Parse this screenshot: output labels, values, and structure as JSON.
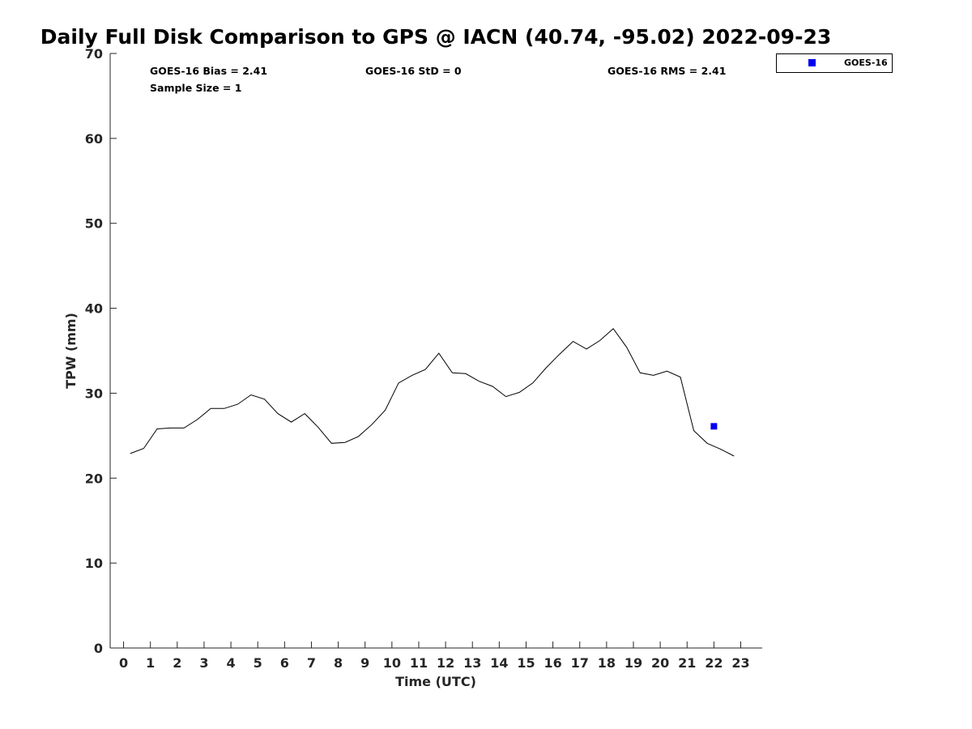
{
  "chart_data": {
    "type": "line",
    "title": "Daily Full Disk Comparison to GPS @ IACN (40.74, -95.02) 2022-09-23",
    "xlabel": "Time (UTC)",
    "ylabel": "TPW (mm)",
    "xlim": [
      -0.5,
      23.8
    ],
    "ylim": [
      0,
      70
    ],
    "x_ticks": [
      "0",
      "1",
      "2",
      "3",
      "4",
      "5",
      "6",
      "7",
      "8",
      "9",
      "10",
      "11",
      "12",
      "13",
      "14",
      "15",
      "16",
      "17",
      "18",
      "19",
      "20",
      "21",
      "22",
      "23"
    ],
    "y_ticks": [
      "0",
      "10",
      "20",
      "30",
      "40",
      "50",
      "60",
      "70"
    ],
    "grid": false,
    "stats": {
      "bias": "GOES-16 Bias = 2.41",
      "std": "GOES-16 StD = 0",
      "rms": "GOES-16 RMS = 2.41",
      "sample_size": "Sample Size = 1"
    },
    "legend": {
      "position": "outside-top-right",
      "entries": [
        "GOES-16"
      ]
    },
    "series": [
      {
        "role": "gps",
        "style": "line",
        "color": "#000000",
        "x": [
          0.25,
          0.75,
          1.25,
          1.75,
          2.25,
          2.75,
          3.25,
          3.75,
          4.25,
          4.75,
          5.25,
          5.75,
          6.25,
          6.75,
          7.25,
          7.75,
          8.25,
          8.75,
          9.25,
          9.75,
          10.25,
          10.75,
          11.25,
          11.75,
          12.25,
          12.75,
          13.25,
          13.75,
          14.25,
          14.75,
          15.25,
          15.75,
          16.25,
          16.75,
          17.25,
          17.75,
          18.25,
          18.75,
          19.25,
          19.75,
          20.25,
          20.75,
          21.25,
          21.75,
          22.25,
          22.75
        ],
        "y": [
          22.9,
          23.5,
          25.8,
          25.9,
          25.9,
          26.9,
          28.2,
          28.2,
          28.7,
          29.8,
          29.3,
          27.6,
          26.6,
          27.6,
          26.0,
          24.1,
          24.2,
          24.9,
          26.3,
          28.0,
          31.2,
          32.1,
          32.8,
          34.7,
          32.4,
          32.3,
          31.4,
          30.8,
          29.6,
          30.1,
          31.2,
          33.0,
          34.6,
          36.1,
          35.2,
          36.2,
          37.6,
          35.4,
          32.4,
          32.1,
          32.6,
          31.9,
          25.6,
          24.1,
          23.4,
          22.6
        ]
      },
      {
        "name": "GOES-16",
        "style": "marker",
        "color": "#0000ee",
        "x": [
          22.0
        ],
        "y": [
          26.1
        ]
      }
    ]
  }
}
